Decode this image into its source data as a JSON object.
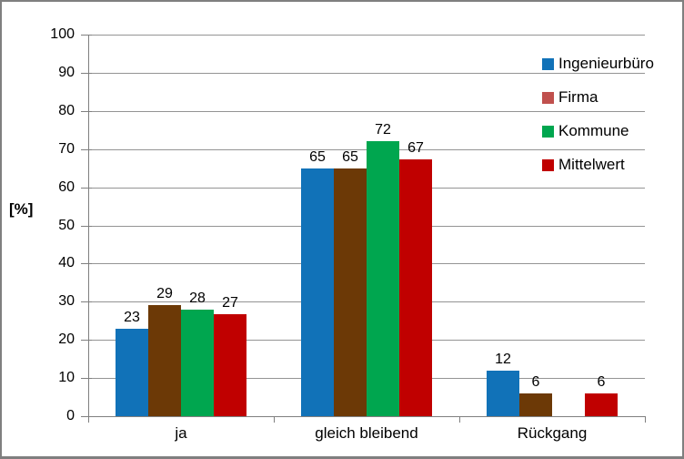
{
  "chart_data": {
    "type": "bar",
    "title": "",
    "ylabel": "[%]",
    "ylim": [
      0,
      100
    ],
    "ytick_step": 10,
    "ytick_labels": [
      "0",
      "10",
      "20",
      "30",
      "40",
      "50",
      "60",
      "70",
      "80",
      "90",
      "100"
    ],
    "grid": true,
    "legend_position": "right",
    "categories": [
      "ja",
      "gleich bleibend",
      "Rückgang"
    ],
    "series": [
      {
        "name": "Ingenieurbüro",
        "bar_color": "#1172B8",
        "legend_color": "#1172B8",
        "values": [
          23,
          65,
          12
        ],
        "labels": [
          "23",
          "65",
          "12"
        ]
      },
      {
        "name": "Firma",
        "bar_color": "#6C3906",
        "legend_color": "#C0504D",
        "values": [
          29,
          65,
          6
        ],
        "labels": [
          "29",
          "65",
          "6"
        ]
      },
      {
        "name": "Kommune",
        "bar_color": "#00A64F",
        "legend_color": "#00A64F",
        "values": [
          28,
          72,
          null
        ],
        "labels": [
          "28",
          "72",
          null
        ]
      },
      {
        "name": "Mittelwert",
        "bar_color": "#C00000",
        "legend_color": "#C00000",
        "values": [
          26.7,
          67.3,
          6
        ],
        "labels": [
          "27",
          "67",
          "6"
        ]
      }
    ]
  },
  "colors": {
    "gridline": "#949494",
    "axis": "#7f7f7f",
    "frame_border": "#7f7f7f",
    "text": "#000000",
    "background": "#ffffff"
  }
}
